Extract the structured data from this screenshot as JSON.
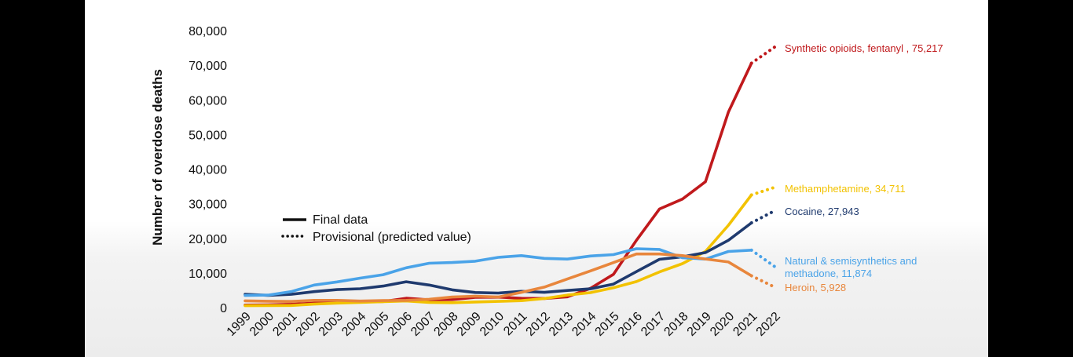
{
  "chart_data": {
    "type": "line",
    "title": "",
    "xlabel": "",
    "ylabel": "Number of overdose deaths",
    "ylim": [
      0,
      80000
    ],
    "yticks": [
      "0",
      "10,000",
      "20,000",
      "30,000",
      "40,000",
      "50,000",
      "60,000",
      "70,000",
      "80,000"
    ],
    "categories": [
      "1999",
      "2000",
      "2001",
      "2002",
      "2003",
      "2004",
      "2005",
      "2006",
      "2007",
      "2008",
      "2009",
      "2010",
      "2011",
      "2012",
      "2013",
      "2014",
      "2015",
      "2016",
      "2017",
      "2018",
      "2019",
      "2020",
      "2021",
      "2022"
    ],
    "legend": {
      "final": "Final data",
      "provisional": "Provisional (predicted value)"
    },
    "series": [
      {
        "name": "Synthetic opioids, fentanyl",
        "label": "Synthetic opioids, fentanyl , 75,217",
        "color": "#c0191c",
        "values": [
          730,
          782,
          957,
          1295,
          1400,
          1664,
          1742,
          2707,
          2213,
          2306,
          2946,
          3007,
          2666,
          2628,
          3105,
          5544,
          9580,
          19413,
          28466,
          31335,
          36359,
          56516,
          70601,
          75217
        ]
      },
      {
        "name": "Methamphetamine",
        "label": "Methamphetamine, 34,711",
        "color": "#f2c200",
        "values": [
          547,
          578,
          606,
          1000,
          1300,
          1500,
          1700,
          1900,
          1500,
          1400,
          1600,
          1800,
          2000,
          2600,
          3600,
          4300,
          5700,
          7500,
          10300,
          12700,
          16200,
          23800,
          32537,
          34711
        ]
      },
      {
        "name": "Cocaine",
        "label": "Cocaine, 27,943",
        "color": "#1f3a6e",
        "values": [
          3822,
          3544,
          3833,
          4599,
          5199,
          5443,
          6208,
          7448,
          6512,
          5129,
          4350,
          4183,
          4681,
          4404,
          4944,
          5415,
          6784,
          10375,
          13942,
          14666,
          15883,
          19447,
          24486,
          27943
        ]
      },
      {
        "name": "Natural & semisynthetics and methadone",
        "label_line1": "Natural & semisynthetics and",
        "label_line2": "methadone, 11,874",
        "color": "#4aa3e8",
        "values": [
          3500,
          3600,
          4600,
          6500,
          7400,
          8500,
          9500,
          11500,
          12800,
          13000,
          13400,
          14500,
          15000,
          14200,
          14000,
          14900,
          15300,
          17000,
          16800,
          14400,
          14000,
          16200,
          16600,
          11874
        ]
      },
      {
        "name": "Heroin",
        "label": "Heroin, 5,928",
        "color": "#e8863c",
        "values": [
          1960,
          1842,
          1779,
          2089,
          2080,
          1878,
          2009,
          2088,
          2399,
          3041,
          3278,
          3036,
          4397,
          5925,
          8257,
          10574,
          12989,
          15469,
          15482,
          14996,
          14019,
          13165,
          9173,
          5928
        ]
      }
    ]
  }
}
